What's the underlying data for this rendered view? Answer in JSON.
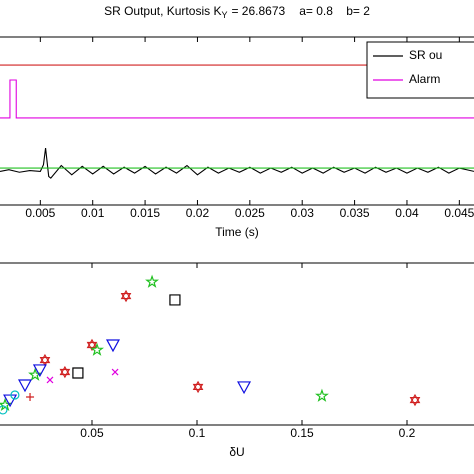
{
  "chart_data": [
    {
      "type": "line",
      "title": {
        "text": "SR Output, Kurtosis K",
        "subscript": "Y",
        "value_text": "= 26.8673",
        "params": "a= 0.8    b= 2"
      },
      "xlabel": "Time (s)",
      "xlim": [
        0.00115,
        0.0464
      ],
      "ylim": [
        0,
        10
      ],
      "xticks": [
        0.005,
        0.01,
        0.015,
        0.02,
        0.025,
        0.03,
        0.035,
        0.04,
        0.045
      ],
      "legend": "upper right",
      "series": [
        {
          "name": "SR ou",
          "color": "#000000",
          "x": [
            0.00115,
            0.002,
            0.003,
            0.004,
            0.005,
            0.0053,
            0.0055,
            0.0058,
            0.006,
            0.007,
            0.008,
            0.009,
            0.01,
            0.011,
            0.012,
            0.013,
            0.014,
            0.015,
            0.016,
            0.017,
            0.018,
            0.019,
            0.02,
            0.021,
            0.022,
            0.023,
            0.024,
            0.025,
            0.026,
            0.027,
            0.028,
            0.029,
            0.03,
            0.031,
            0.032,
            0.033,
            0.034,
            0.035,
            0.036,
            0.037,
            0.038,
            0.039,
            0.04,
            0.041,
            0.042,
            0.043,
            0.044,
            0.045,
            0.0464
          ],
          "values": [
            2.0,
            2.1,
            1.95,
            2.05,
            2.0,
            2.4,
            3.39,
            1.7,
            1.6,
            2.35,
            1.8,
            2.3,
            1.85,
            2.3,
            1.85,
            2.25,
            1.9,
            2.3,
            1.85,
            2.25,
            1.9,
            2.35,
            1.8,
            2.25,
            1.9,
            2.2,
            1.95,
            2.25,
            1.9,
            2.2,
            1.95,
            2.25,
            1.9,
            2.2,
            1.9,
            2.25,
            1.95,
            2.2,
            1.9,
            2.25,
            1.95,
            2.2,
            1.9,
            2.2,
            1.95,
            2.25,
            1.9,
            2.2,
            2.0
          ]
        },
        {
          "name": "Alarm",
          "color": "#e000e0",
          "x": [
            0.00115,
            0.0021,
            0.0021,
            0.0027,
            0.0027,
            0.0464
          ],
          "values": [
            5.18,
            5.18,
            7.44,
            7.44,
            5.18,
            5.18
          ]
        },
        {
          "color": "#d02020",
          "x": [
            0.00115,
            0.0464
          ],
          "values": [
            8.33,
            8.33
          ]
        },
        {
          "color": "#20c020",
          "x": [
            0.00115,
            0.0464
          ],
          "values": [
            2.2,
            2.2
          ]
        }
      ]
    },
    {
      "type": "scatter",
      "xlabel": "δU",
      "xlim": [
        0.0062,
        0.2319
      ],
      "ylim": [
        0,
        10
      ],
      "xticks": [
        0.05,
        0.1,
        0.15,
        0.2
      ],
      "series": [
        {
          "color": "#d02020",
          "marker": "hexagram",
          "x": [
            0.0662,
            0.05,
            0.1005,
            0.2038,
            0.0276,
            0.0371
          ],
          "values": [
            7.96,
            4.94,
            2.35,
            1.54,
            4.01,
            3.27
          ]
        },
        {
          "color": "#20c020",
          "marker": "pentagram",
          "x": [
            0.0786,
            0.0524,
            0.1595,
            0.0229,
            0.0086
          ],
          "values": [
            8.83,
            4.63,
            1.79,
            3.09,
            1.23
          ]
        },
        {
          "color": "#000000",
          "marker": "square",
          "x": [
            0.0895,
            0.0433
          ],
          "values": [
            7.72,
            3.21
          ]
        },
        {
          "color": "#1010e0",
          "marker": "triangle-down",
          "x": [
            0.06,
            0.1224,
            0.0252,
            0.0181,
            0.011
          ],
          "values": [
            4.94,
            2.35,
            3.4,
            2.47,
            1.54
          ]
        },
        {
          "color": "#e000e0",
          "marker": "x",
          "x": [
            0.061,
            0.03
          ],
          "values": [
            3.27,
            2.78
          ]
        },
        {
          "color": "#00c0c0",
          "marker": "circle",
          "x": [
            0.0133,
            0.0076
          ],
          "values": [
            1.85,
            0.93
          ]
        },
        {
          "color": "#d02020",
          "marker": "plus",
          "x": [
            0.0205
          ],
          "values": [
            1.73
          ]
        }
      ]
    }
  ]
}
